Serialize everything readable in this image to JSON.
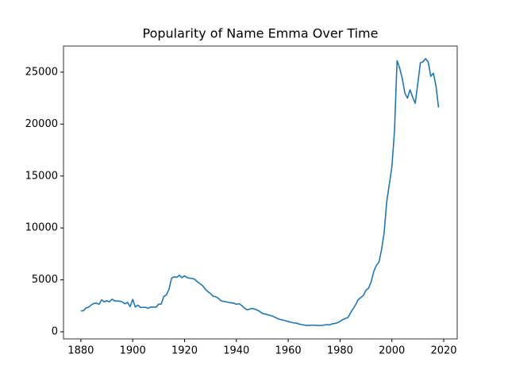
{
  "chart_data": {
    "type": "line",
    "title": "Popularity of Name Emma Over Time",
    "x": [
      1880,
      1881,
      1882,
      1883,
      1884,
      1885,
      1886,
      1887,
      1888,
      1889,
      1890,
      1891,
      1892,
      1893,
      1894,
      1895,
      1896,
      1897,
      1898,
      1899,
      1900,
      1901,
      1902,
      1903,
      1904,
      1905,
      1906,
      1907,
      1908,
      1909,
      1910,
      1911,
      1912,
      1913,
      1914,
      1915,
      1916,
      1917,
      1918,
      1919,
      1920,
      1921,
      1922,
      1923,
      1924,
      1925,
      1926,
      1927,
      1928,
      1929,
      1930,
      1931,
      1932,
      1933,
      1934,
      1935,
      1936,
      1937,
      1938,
      1939,
      1940,
      1941,
      1942,
      1943,
      1944,
      1945,
      1946,
      1947,
      1948,
      1949,
      1950,
      1951,
      1952,
      1953,
      1954,
      1955,
      1956,
      1957,
      1958,
      1959,
      1960,
      1961,
      1962,
      1963,
      1964,
      1965,
      1966,
      1967,
      1968,
      1969,
      1970,
      1971,
      1972,
      1973,
      1974,
      1975,
      1976,
      1977,
      1978,
      1979,
      1980,
      1981,
      1982,
      1983,
      1984,
      1985,
      1986,
      1987,
      1988,
      1989,
      1990,
      1991,
      1992,
      1993,
      1994,
      1995,
      1996,
      1997,
      1998,
      1999,
      2000,
      2001,
      2002,
      2003,
      2004,
      2005,
      2006,
      2007,
      2008,
      2009,
      2010,
      2011,
      2012,
      2013,
      2014,
      2015,
      2016,
      2017,
      2018
    ],
    "series": [
      {
        "color": "#1f77b4",
        "values": [
          2003,
          2034,
          2303,
          2367,
          2587,
          2728,
          2764,
          2647,
          3076,
          2884,
          2990,
          2884,
          3142,
          2988,
          2961,
          2955,
          2877,
          2699,
          2828,
          2427,
          3120,
          2395,
          2569,
          2355,
          2351,
          2349,
          2266,
          2395,
          2381,
          2366,
          2662,
          2672,
          3402,
          3540,
          4093,
          5166,
          5297,
          5245,
          5441,
          5210,
          5386,
          5221,
          5153,
          5142,
          5038,
          4806,
          4624,
          4437,
          4108,
          3875,
          3691,
          3430,
          3379,
          3237,
          2994,
          2929,
          2888,
          2828,
          2798,
          2751,
          2648,
          2707,
          2553,
          2309,
          2124,
          2175,
          2259,
          2189,
          2103,
          1960,
          1775,
          1715,
          1650,
          1580,
          1500,
          1400,
          1260,
          1180,
          1130,
          1060,
          990,
          920,
          860,
          850,
          760,
          700,
          660,
          610,
          630,
          640,
          640,
          620,
          610,
          620,
          660,
          700,
          660,
          780,
          800,
          880,
          1000,
          1170,
          1280,
          1360,
          1800,
          2200,
          2600,
          3100,
          3300,
          3500,
          4000,
          4200,
          4800,
          5800,
          6400,
          6700,
          7900,
          9500,
          12500,
          14200,
          15900,
          19300,
          26100,
          25400,
          24400,
          23000,
          22500,
          23300,
          22600,
          22000,
          23900,
          25900,
          26000,
          26300,
          26000,
          24600,
          24900,
          23700,
          21600
        ]
      }
    ],
    "xlim": [
      1873.3,
      2025.2
    ],
    "xticks": [
      1880,
      1900,
      1920,
      1940,
      1960,
      1980,
      2000,
      2020
    ],
    "ylim": [
      -686,
      27515
    ],
    "yticks": [
      0,
      5000,
      10000,
      15000,
      20000,
      25000
    ]
  }
}
